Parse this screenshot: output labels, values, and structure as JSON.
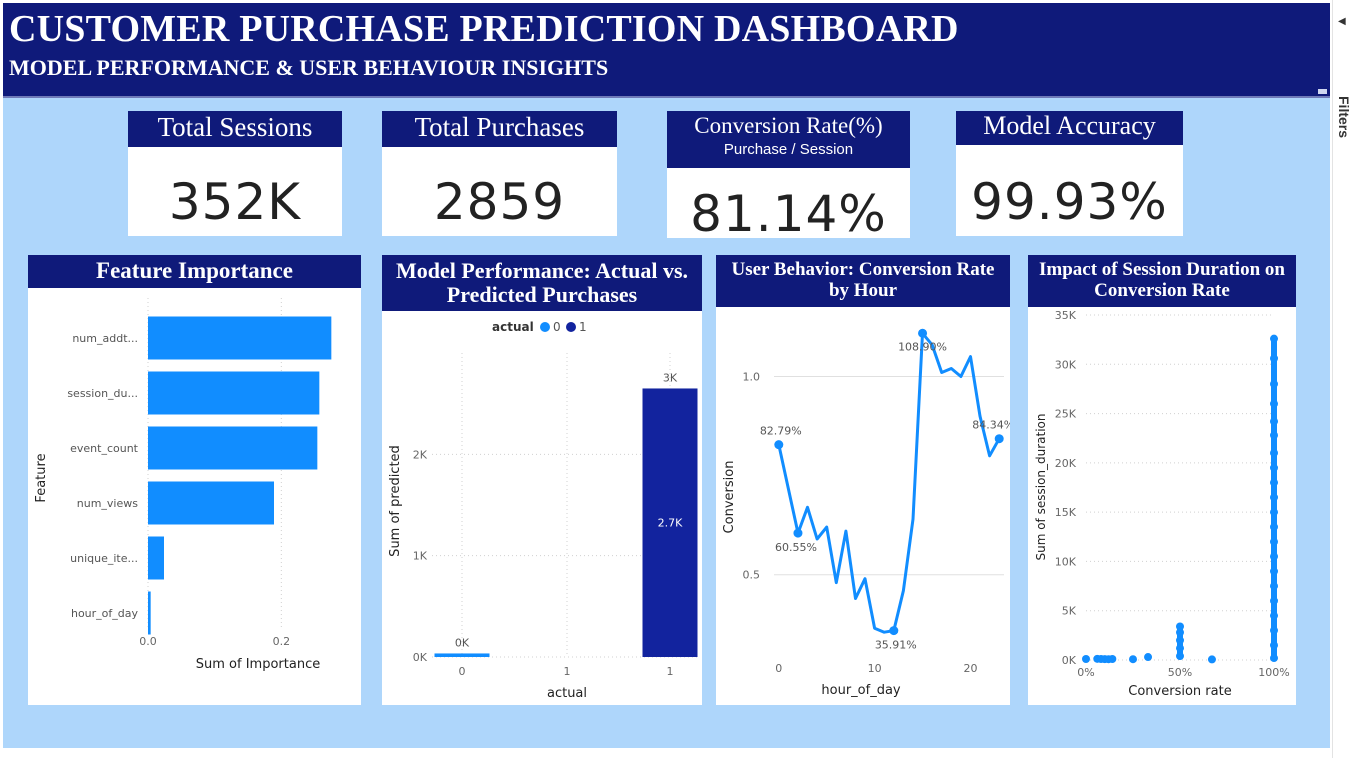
{
  "header": {
    "title": "CUSTOMER PURCHASE PREDICTION DASHBOARD",
    "subtitle": "MODEL PERFORMANCE & USER BEHAVIOUR INSIGHTS"
  },
  "kpis": [
    {
      "label": "Total Sessions",
      "sublabel": "",
      "value": "352K"
    },
    {
      "label": "Total Purchases",
      "sublabel": "",
      "value": "2859"
    },
    {
      "label": "Conversion Rate(%)",
      "sublabel": "Purchase / Session",
      "value": "81.14%"
    },
    {
      "label": "Model Accuracy",
      "sublabel": "",
      "value": "99.93%"
    }
  ],
  "panels": {
    "feature": "Feature Importance",
    "model": "Model Performance: Actual vs. Predicted Purchases",
    "hour": "User Behavior: Conversion Rate by Hour",
    "duration": "Impact of Session Duration on Conversion Rate"
  },
  "filters": {
    "label": "Filters",
    "icon": "chevron-left-icon"
  },
  "colors": {
    "navy": "#0f1a7a",
    "canvas": "#aed6fb",
    "blue": "#118dff",
    "dark_blue": "#12239e"
  },
  "chart_data": [
    {
      "type": "bar",
      "orientation": "horizontal",
      "title": "Feature Importance",
      "xlabel": "Sum of Importance",
      "ylabel": "Feature",
      "categories": [
        "num_addt...",
        "session_du...",
        "event_count",
        "num_views",
        "unique_ite...",
        "hour_of_day"
      ],
      "values": [
        0.275,
        0.257,
        0.254,
        0.189,
        0.024,
        0.004
      ],
      "xlim": [
        0,
        0.3
      ],
      "xticks": [
        "0.0",
        "0.2"
      ],
      "color": "#118dff"
    },
    {
      "type": "bar",
      "title": "Model Performance: Actual vs. Predicted Purchases",
      "xlabel": "actual",
      "ylabel": "Sum of predicted",
      "legend": {
        "title": "actual",
        "items": [
          {
            "name": "0",
            "color": "#118dff"
          },
          {
            "name": "1",
            "color": "#12239e"
          }
        ],
        "position": "top"
      },
      "categories": [
        "0",
        "1"
      ],
      "x_ticks": [
        "0",
        "1",
        "1"
      ],
      "values": [
        35,
        2650
      ],
      "data_labels": [
        "0K",
        "3K"
      ],
      "inner_label": "2.7K",
      "ylim": [
        0,
        3000
      ],
      "yticks": [
        "0K",
        "1K",
        "2K"
      ]
    },
    {
      "type": "line",
      "title": "User Behavior: Conversion Rate by Hour",
      "xlabel": "hour_of_day",
      "ylabel": "Conversion",
      "x": [
        0,
        2,
        3,
        4,
        5,
        6,
        7,
        8,
        9,
        10,
        11,
        12,
        13,
        14,
        15,
        16,
        17,
        18,
        19,
        20,
        21,
        22,
        23
      ],
      "y": [
        0.828,
        0.605,
        0.67,
        0.59,
        0.62,
        0.48,
        0.61,
        0.44,
        0.49,
        0.365,
        0.355,
        0.359,
        0.46,
        0.64,
        1.109,
        1.08,
        1.01,
        1.02,
        1.0,
        1.05,
        0.9,
        0.8,
        0.843
      ],
      "data_labels": [
        {
          "x": 0,
          "label": "82.79%"
        },
        {
          "x": 2,
          "label": "60.55%"
        },
        {
          "x": 12,
          "label": "35.91%"
        },
        {
          "x": 15,
          "label": "108.90%"
        },
        {
          "x": 23,
          "label": "84.34%"
        }
      ],
      "xticks": [
        "0",
        "10",
        "20"
      ],
      "yticks": [
        "0.5",
        "1.0"
      ],
      "xlim": [
        -0.5,
        23.5
      ],
      "ylim": [
        0.3,
        1.15
      ],
      "color": "#118dff"
    },
    {
      "type": "scatter",
      "title": "Impact of Session Duration on Conversion Rate",
      "xlabel": "Conversion rate",
      "ylabel": "Sum of session_duration",
      "xticks": [
        "0%",
        "50%",
        "100%"
      ],
      "yticks": [
        "0K",
        "5K",
        "10K",
        "15K",
        "20K",
        "25K",
        "30K",
        "35K"
      ],
      "xlim": [
        0,
        1
      ],
      "ylim": [
        0,
        35000
      ],
      "points": [
        [
          0.0,
          100
        ],
        [
          0.06,
          120
        ],
        [
          0.08,
          100
        ],
        [
          0.1,
          90
        ],
        [
          0.12,
          80
        ],
        [
          0.14,
          100
        ],
        [
          0.25,
          80
        ],
        [
          0.33,
          300
        ],
        [
          0.5,
          400
        ],
        [
          0.5,
          1200
        ],
        [
          0.5,
          2000
        ],
        [
          0.5,
          2800
        ],
        [
          0.5,
          3400
        ],
        [
          0.67,
          60
        ],
        [
          1.0,
          32600
        ],
        [
          1.0,
          30600
        ],
        [
          1.0,
          28000
        ],
        [
          1.0,
          26000
        ],
        [
          1.0,
          24200
        ],
        [
          1.0,
          22800
        ],
        [
          1.0,
          21000
        ],
        [
          1.0,
          19500
        ],
        [
          1.0,
          18000
        ],
        [
          1.0,
          16500
        ],
        [
          1.0,
          15000
        ],
        [
          1.0,
          13500
        ],
        [
          1.0,
          12000
        ],
        [
          1.0,
          10500
        ],
        [
          1.0,
          9000
        ],
        [
          1.0,
          7500
        ],
        [
          1.0,
          6000
        ],
        [
          1.0,
          4500
        ],
        [
          1.0,
          3000
        ],
        [
          1.0,
          1500
        ],
        [
          1.0,
          200
        ]
      ],
      "color": "#118dff"
    }
  ]
}
